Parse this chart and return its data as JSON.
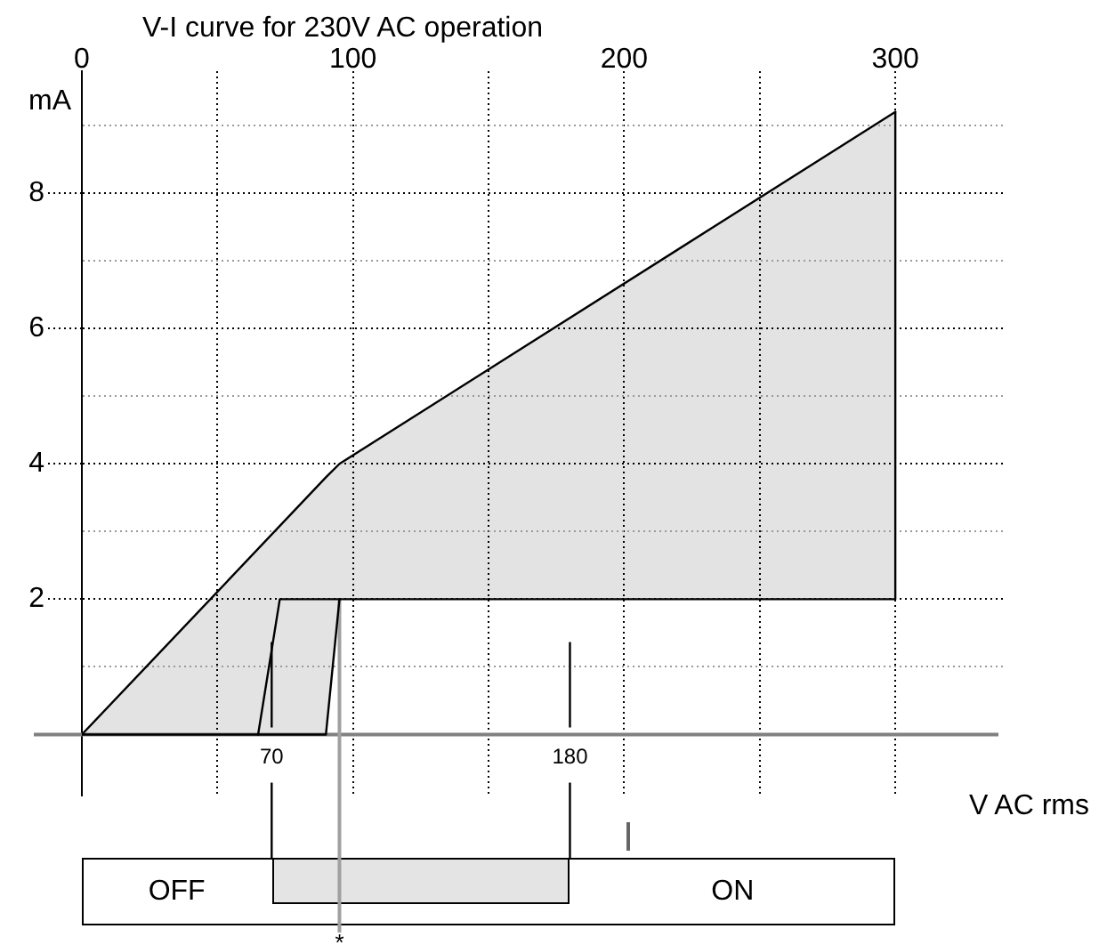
{
  "chart_data": {
    "type": "line",
    "title": "V-I curve for 230V AC operation",
    "xlabel": "V AC rms",
    "ylabel": "mA",
    "series": [
      {
        "type": "line",
        "color": "#000000",
        "x": [
          0,
          90,
          95,
          300
        ],
        "values": [
          0,
          3.8,
          4,
          9.2
        ],
        "lower": [
          0,
          0,
          2,
          2
        ],
        "upper": [
          0,
          3.8,
          4,
          9.2
        ]
      },
      {
        "type": "line",
        "color": "#000000",
        "x": [
          0,
          90,
          95,
          300,
          300
        ],
        "values": [
          0,
          0,
          2,
          2,
          9.2
        ]
      },
      {
        "type": "line",
        "color": "#000000",
        "x": [
          65,
          73,
          95
        ],
        "values": [
          0,
          2,
          2
        ]
      }
    ],
    "xlim": [
      0,
      340
    ],
    "xticks": [
      0,
      {
        "value": 50,
        "label": null
      },
      100,
      {
        "value": 150,
        "label": null
      },
      200,
      {
        "value": 250,
        "label": null
      },
      300
    ],
    "ylim": [
      -0.9,
      9.8
    ],
    "yticks": [
      {
        "value": 1,
        "label": null
      },
      2,
      {
        "value": 3,
        "label": null
      },
      4,
      {
        "value": 5,
        "label": null
      },
      6,
      {
        "value": 7,
        "label": null
      },
      8,
      {
        "value": 9,
        "label": null
      }
    ],
    "grid": true,
    "marker": "none",
    "ref_lines": [
      {
        "axis": "y",
        "value": 0,
        "color": "#808080"
      },
      {
        "axis": "x",
        "value": 70,
        "label": "70",
        "color": "#000000"
      },
      {
        "axis": "x",
        "value": 180,
        "label": "180",
        "color": "#000000"
      },
      {
        "axis": "x",
        "value": 95,
        "label": "*",
        "color": "#a0a0a0"
      }
    ],
    "annotations": [
      "OFF",
      "ON"
    ]
  }
}
